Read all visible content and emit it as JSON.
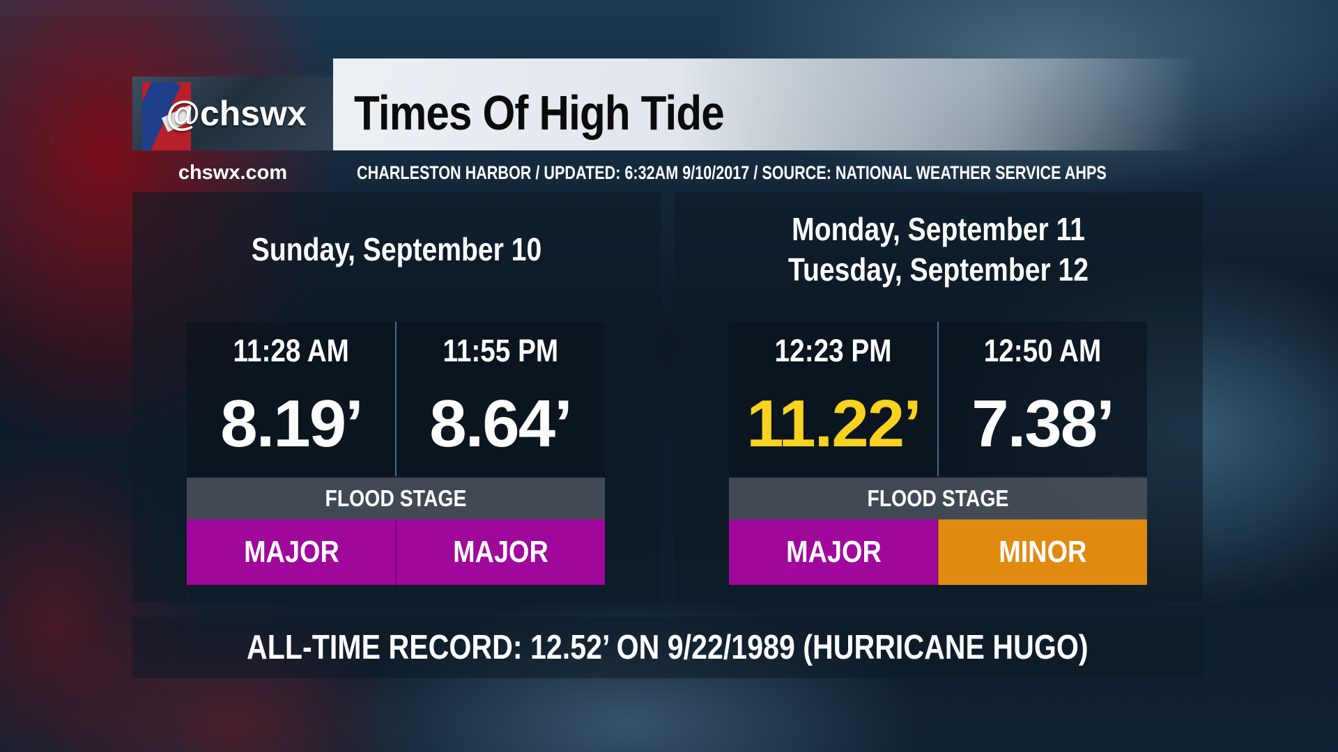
{
  "header": {
    "handle": "@chswx",
    "title": "Times Of High Tide",
    "site": "chswx.com",
    "subtitle": "CHARLESTON HARBOR / UPDATED: 6:32AM 9/10/2017 / SOURCE: NATIONAL WEATHER SERVICE AHPS"
  },
  "panels": [
    {
      "day_lines": [
        "Sunday, September 10"
      ],
      "flood_stage_label": "FLOOD STAGE",
      "tides": [
        {
          "time": "11:28 AM",
          "height": "8.19’",
          "height_color": "#ffffff",
          "stage": "MAJOR",
          "stage_color": "#a0089c"
        },
        {
          "time": "11:55 PM",
          "height": "8.64’",
          "height_color": "#ffffff",
          "stage": "MAJOR",
          "stage_color": "#a0089c"
        }
      ]
    },
    {
      "day_lines": [
        "Monday, September 11",
        "Tuesday, September 12"
      ],
      "flood_stage_label": "FLOOD STAGE",
      "tides": [
        {
          "time": "12:23 PM",
          "height": "11.22’",
          "height_color": "#f7d21f",
          "stage": "MAJOR",
          "stage_color": "#a0089c"
        },
        {
          "time": "12:50 AM",
          "height": "7.38’",
          "height_color": "#ffffff",
          "stage": "MINOR",
          "stage_color": "#e08a10"
        }
      ]
    }
  ],
  "record": "ALL-TIME RECORD: 12.52’ ON 9/22/1989 (HURRICANE HUGO)"
}
